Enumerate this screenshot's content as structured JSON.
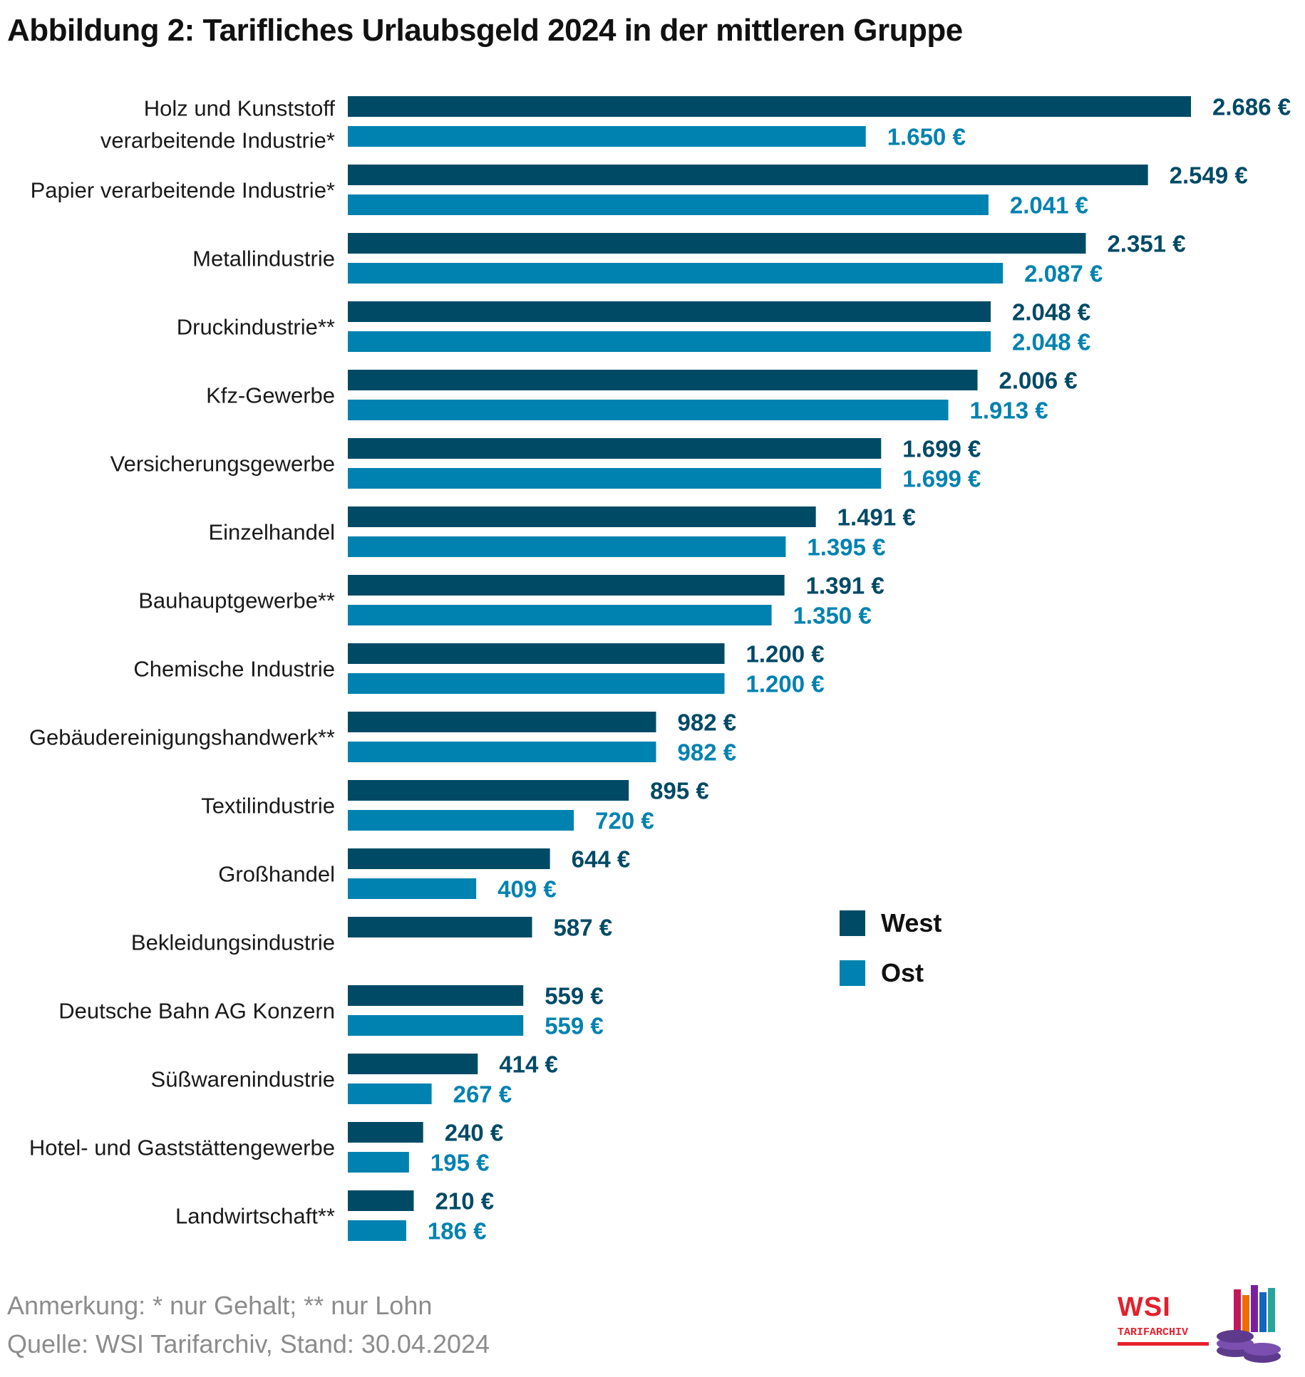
{
  "title": "Abbildung 2: Tarifliches Urlaubsgeld 2024 in der mittleren Gruppe",
  "colors": {
    "west": "#004a66",
    "ost": "#0082b0"
  },
  "chart_data": {
    "type": "bar",
    "orientation": "horizontal",
    "value_suffix": " €",
    "categories": [
      [
        "Holz und Kunststoff",
        "verarbeitende Industrie*"
      ],
      [
        "Papier verarbeitende Industrie*"
      ],
      [
        "Metallindustrie"
      ],
      [
        "Druckindustrie**"
      ],
      [
        "Kfz-Gewerbe"
      ],
      [
        "Versicherungsgewerbe"
      ],
      [
        "Einzelhandel"
      ],
      [
        "Bauhauptgewerbe**"
      ],
      [
        "Chemische Industrie"
      ],
      [
        "Gebäudereinigungshandwerk**"
      ],
      [
        "Textilindustrie"
      ],
      [
        "Großhandel"
      ],
      [
        "Bekleidungsindustrie"
      ],
      [
        "Deutsche Bahn AG Konzern"
      ],
      [
        "Süßwarenindustrie"
      ],
      [
        "Hotel- und Gaststättengewerbe"
      ],
      [
        "Landwirtschaft**"
      ]
    ],
    "series": [
      {
        "name": "West",
        "values": [
          2686,
          2549,
          2351,
          2048,
          2006,
          1699,
          1491,
          1391,
          1200,
          982,
          895,
          644,
          587,
          559,
          414,
          240,
          210
        ]
      },
      {
        "name": "Ost",
        "values": [
          1650,
          2041,
          2087,
          2048,
          1913,
          1699,
          1395,
          1350,
          1200,
          982,
          720,
          409,
          null,
          559,
          267,
          195,
          186
        ]
      }
    ],
    "legend_position": "bottom-right",
    "grid": false
  },
  "legend": [
    {
      "label": "West"
    },
    {
      "label": "Ost"
    }
  ],
  "footnotes": {
    "anmerkung": "Anmerkung: * nur Gehalt; ** nur Lohn",
    "quelle": "Quelle:  WSI Tarifarchiv, Stand:  30.04.2024"
  },
  "logo": {
    "name": "WSI",
    "sub": "TARIFARCHIV",
    "icon": "coin-stack-bars-icon"
  }
}
